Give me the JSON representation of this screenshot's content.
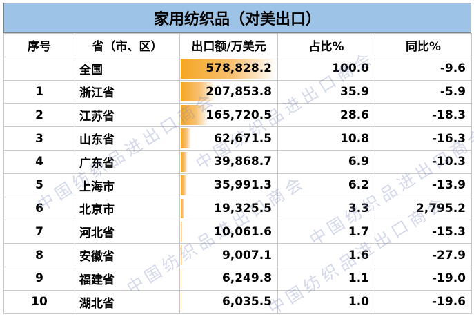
{
  "title": "家用纺织品（对美出口）",
  "headers": {
    "rank": "序号",
    "province": "省（市、区）",
    "export": "出口额/万美元",
    "share": "占比%",
    "yoy": "同比%"
  },
  "rows": [
    {
      "rank": "",
      "province": "全国",
      "export": "578,828.2",
      "export_value": 578828.2,
      "share": "100.0",
      "yoy": "-9.6"
    },
    {
      "rank": "1",
      "province": "浙江省",
      "export": "207,853.8",
      "export_value": 207853.8,
      "share": "35.9",
      "yoy": "-5.9"
    },
    {
      "rank": "2",
      "province": "江苏省",
      "export": "165,720.5",
      "export_value": 165720.5,
      "share": "28.6",
      "yoy": "-18.3"
    },
    {
      "rank": "3",
      "province": "山东省",
      "export": "62,671.5",
      "export_value": 62671.5,
      "share": "10.8",
      "yoy": "-16.3"
    },
    {
      "rank": "4",
      "province": "广东省",
      "export": "39,868.7",
      "export_value": 39868.7,
      "share": "6.9",
      "yoy": "-10.3"
    },
    {
      "rank": "5",
      "province": "上海市",
      "export": "35,991.3",
      "export_value": 35991.3,
      "share": "6.2",
      "yoy": "-13.9"
    },
    {
      "rank": "6",
      "province": "北京市",
      "export": "19,325.5",
      "export_value": 19325.5,
      "share": "3.3",
      "yoy": "2,795.2"
    },
    {
      "rank": "7",
      "province": "河北省",
      "export": "10,061.6",
      "export_value": 10061.6,
      "share": "1.7",
      "yoy": "-15.3"
    },
    {
      "rank": "8",
      "province": "安徽省",
      "export": "9,007.1",
      "export_value": 9007.1,
      "share": "1.6",
      "yoy": "-27.9"
    },
    {
      "rank": "9",
      "province": "福建省",
      "export": "6,249.8",
      "export_value": 6249.8,
      "share": "1.1",
      "yoy": "-19.0"
    },
    {
      "rank": "10",
      "province": "湖北省",
      "export": "6,035.5",
      "export_value": 6035.5,
      "share": "1.0",
      "yoy": "-19.6"
    }
  ],
  "watermark": "中国纺织品进出口商会",
  "colors": {
    "title_bg": "#9dc3e6",
    "bar": "#f5a623",
    "watermark": "#8c9cc8"
  }
}
